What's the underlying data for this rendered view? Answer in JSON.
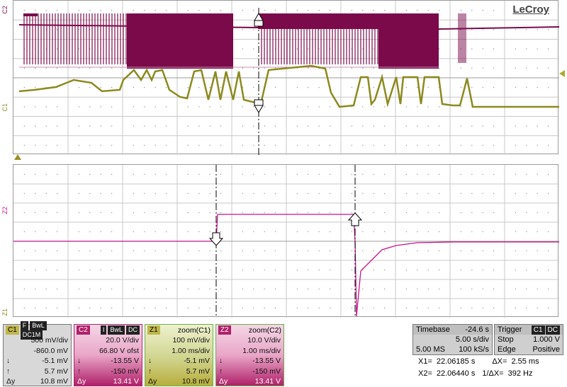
{
  "brand": "LeCroy",
  "channels": {
    "top_c2_tag": "C2",
    "top_c1_tag": "C1",
    "bottom_z2_tag": "Z2",
    "bottom_z1_tag": "Z1"
  },
  "panels": [
    {
      "name": "C1",
      "flags": [
        "F",
        "BwL",
        "DC1M"
      ],
      "rows": [
        [
          "",
          "500 mV/div"
        ],
        [
          "",
          "-860.0 mV"
        ],
        [
          "↓",
          "-5.1 mV"
        ],
        [
          "↑",
          "5.7 mV"
        ],
        [
          "Δy",
          "10.8 mV"
        ]
      ],
      "color": "#b8ae3c"
    },
    {
      "name": "C2",
      "flags": [
        "I",
        "BwL",
        "DC"
      ],
      "rows": [
        [
          "",
          "20.0 V/div"
        ],
        [
          "",
          "66.80 V ofst"
        ],
        [
          "↓",
          "-13.55 V"
        ],
        [
          "↑",
          "-150 mV"
        ],
        [
          "Δy",
          "13.41 V"
        ]
      ],
      "color": "#b0206a"
    },
    {
      "name": "Z1",
      "title": "zoom(C1)",
      "rows": [
        [
          "",
          "100 mV/div"
        ],
        [
          "",
          "1.00 ms/div"
        ],
        [
          "↓",
          "-5.1 mV"
        ],
        [
          "↑",
          "5.7 mV"
        ],
        [
          "Δy",
          "10.8 mV"
        ]
      ],
      "color": "#b8ae3c"
    },
    {
      "name": "Z2",
      "title": "zoom(C2)",
      "rows": [
        [
          "",
          "10.0 V/div"
        ],
        [
          "",
          "1.00 ms/div"
        ],
        [
          "↓",
          "-13.55 V"
        ],
        [
          "↑",
          "-150 mV"
        ],
        [
          "Δy",
          "13.41 V"
        ]
      ],
      "color": "#b0206a"
    }
  ],
  "timebase": {
    "label": "Timebase",
    "offset": "-24.6 s",
    "sdiv": "5.00 s/div",
    "ms": "5.00 MS",
    "ks": "100 kS/s"
  },
  "trigger": {
    "label": "Trigger",
    "chip": "C1",
    "dc": "DC",
    "mode": "Stop",
    "level": "1.000 V",
    "type": "Edge",
    "slope": "Positive"
  },
  "measurements": {
    "x1": "X1=",
    "x1v": "22.06185 s",
    "dx": "ΔX=",
    "dxv": "2.55 ms",
    "x2": "X2=",
    "x2v": "22.06440 s",
    "idx": "1/ΔX=",
    "idxv": "392 Hz"
  },
  "colors": {
    "c1": "#8c8a1e",
    "c2": "#7a0a4a",
    "z2": "#c0168a",
    "accent": "#a8a020"
  }
}
